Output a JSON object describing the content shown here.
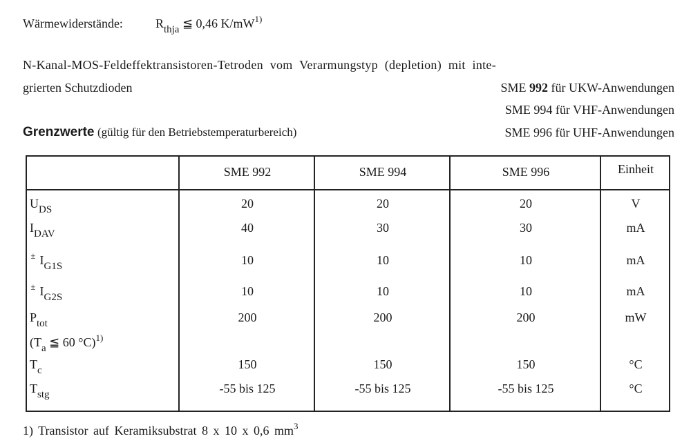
{
  "thermal": {
    "label": "Wärmewiderstände:",
    "symbol": "R",
    "subscript": "thja",
    "relation": "≦",
    "value": "0,46 K/mW",
    "footnote_ref": "1)"
  },
  "description": {
    "line1": "N-Kanal-MOS-Feldeffektransistoren-Tetroden vom Verarmungstyp (depletion) mit inte-",
    "line2": "grierten Schutzdioden"
  },
  "types": [
    {
      "prefix": "SME",
      "number": "992",
      "text": "für UKW-Anwendungen"
    },
    {
      "prefix": "SME",
      "number": "994",
      "text": "für VHF-Anwendungen"
    },
    {
      "prefix": "SME",
      "number": "996",
      "text": "für UHF-Anwendungen"
    }
  ],
  "section": {
    "title": "Grenzwerte",
    "subtitle": "(gültig für den Betriebstemperaturbereich)"
  },
  "table": {
    "headers": [
      "",
      "SME 992",
      "SME 994",
      "SME 996",
      "Einheit"
    ],
    "rows": [
      {
        "prefix": "",
        "symbol": "U",
        "sub": "DS",
        "values": [
          "20",
          "20",
          "20"
        ],
        "unit": "V"
      },
      {
        "prefix": "",
        "symbol": "I",
        "sub": "DAV",
        "values": [
          "40",
          "30",
          "30"
        ],
        "unit": "mA"
      },
      {
        "prefix": "±",
        "symbol": "I",
        "sub": "G1S",
        "values": [
          "10",
          "10",
          "10"
        ],
        "unit": "mA"
      },
      {
        "prefix": "±",
        "symbol": "I",
        "sub": "G2S",
        "values": [
          "10",
          "10",
          "10"
        ],
        "unit": "mA"
      },
      {
        "prefix": "",
        "symbol": "P",
        "sub": "tot",
        "values": [
          "200",
          "200",
          "200"
        ],
        "unit": "mW",
        "condition": {
          "open": "(T",
          "sub": "a",
          "rel": "≦",
          "value": "60 °C)",
          "ref": "1)"
        }
      },
      {
        "prefix": "",
        "symbol": "T",
        "sub": "c",
        "values": [
          "150",
          "150",
          "150"
        ],
        "unit": "°C"
      },
      {
        "prefix": "",
        "symbol": "T",
        "sub": "stg",
        "values": [
          "-55 bis 125",
          "-55 bis 125",
          "-55 bis 125"
        ],
        "unit": "°C"
      }
    ]
  },
  "footnote": {
    "text": "1) Transistor auf Keramiksubstrat 8 x 10 x 0,6 mm",
    "sup": "3"
  }
}
